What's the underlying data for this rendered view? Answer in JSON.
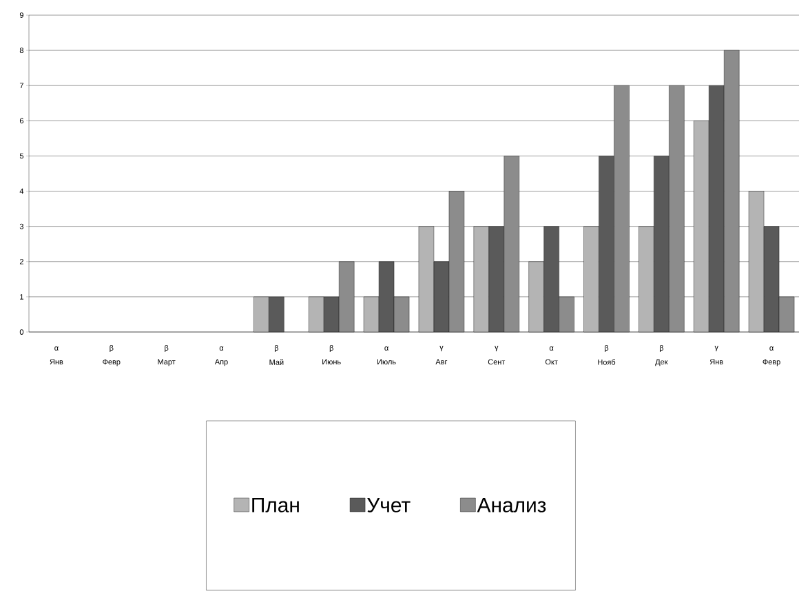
{
  "chart_data": {
    "type": "bar",
    "categories": [
      "Янв",
      "Февр",
      "Март",
      "Апр",
      "Май",
      "Июнь",
      "Июль",
      "Авг",
      "Сент",
      "Окт",
      "Нояб",
      "Дек",
      "Янв",
      "Февр"
    ],
    "annotations": [
      "α",
      "β",
      "β",
      "α",
      "β",
      "β",
      "α",
      "γ",
      "γ",
      "α",
      "β",
      "β",
      "γ",
      "α"
    ],
    "series": [
      {
        "name": "План",
        "color": "#b4b4b4",
        "values": [
          0,
          0,
          0,
          0,
          1,
          1,
          1,
          3,
          3,
          2,
          3,
          3,
          6,
          4
        ]
      },
      {
        "name": "Учет",
        "color": "#5a5a5a",
        "values": [
          0,
          0,
          0,
          0,
          1,
          1,
          2,
          2,
          3,
          3,
          5,
          5,
          7,
          3
        ]
      },
      {
        "name": "Анализ",
        "color": "#8c8c8c",
        "values": [
          0,
          0,
          0,
          0,
          0,
          2,
          1,
          4,
          5,
          1,
          7,
          7,
          8,
          1
        ]
      }
    ],
    "ylim": [
      0,
      9
    ],
    "yticks": [
      0,
      1,
      2,
      3,
      4,
      5,
      6,
      7,
      8,
      9
    ],
    "grid": "y",
    "legend": "bottom"
  }
}
